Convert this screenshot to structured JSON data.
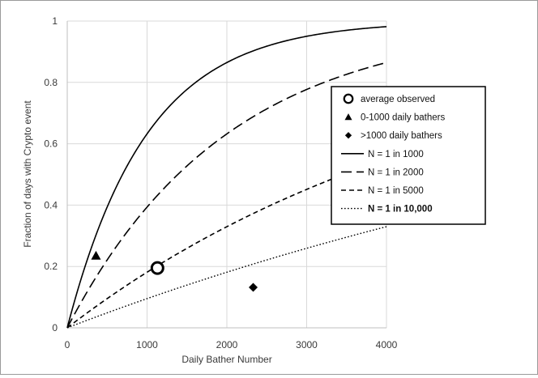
{
  "chart_data": {
    "type": "line",
    "title": "",
    "xlabel": "Daily Bather Number",
    "ylabel": "Fraction of days with Crypto event",
    "xlim": [
      0,
      4000
    ],
    "ylim": [
      0,
      1
    ],
    "x_ticks": [
      "0",
      "1000",
      "2000",
      "3000",
      "4000"
    ],
    "y_ticks": [
      "0",
      "0.2",
      "0.4",
      "0.6",
      "0.8",
      "1"
    ],
    "grid": true,
    "legend_position": "right",
    "curve_formula": "1 - (1 - 1/N)^x",
    "series": [
      {
        "name": "N = 1 in 1000",
        "kind": "curve",
        "N": 1000,
        "style": "solid",
        "color": "#000000"
      },
      {
        "name": "N = 1 in 2000",
        "kind": "curve",
        "N": 2000,
        "style": "long-dash",
        "color": "#000000"
      },
      {
        "name": "N = 1 in 5000",
        "kind": "curve",
        "N": 5000,
        "style": "short-dash",
        "color": "#000000"
      },
      {
        "name": "N = 1 in 10,000",
        "kind": "curve",
        "N": 10000,
        "style": "dotted",
        "color": "#000000",
        "bold_label": true
      },
      {
        "name": "average observed",
        "kind": "point",
        "marker": "circle",
        "x": 1130,
        "y": 0.195
      },
      {
        "name": "0-1000 daily bathers",
        "kind": "point",
        "marker": "triangle",
        "x": 360,
        "y": 0.235
      },
      {
        "name": ">1000 daily bathers",
        "kind": "point",
        "marker": "diamond",
        "x": 2330,
        "y": 0.132
      }
    ],
    "legend_order": [
      4,
      5,
      6,
      0,
      1,
      2,
      3
    ]
  }
}
